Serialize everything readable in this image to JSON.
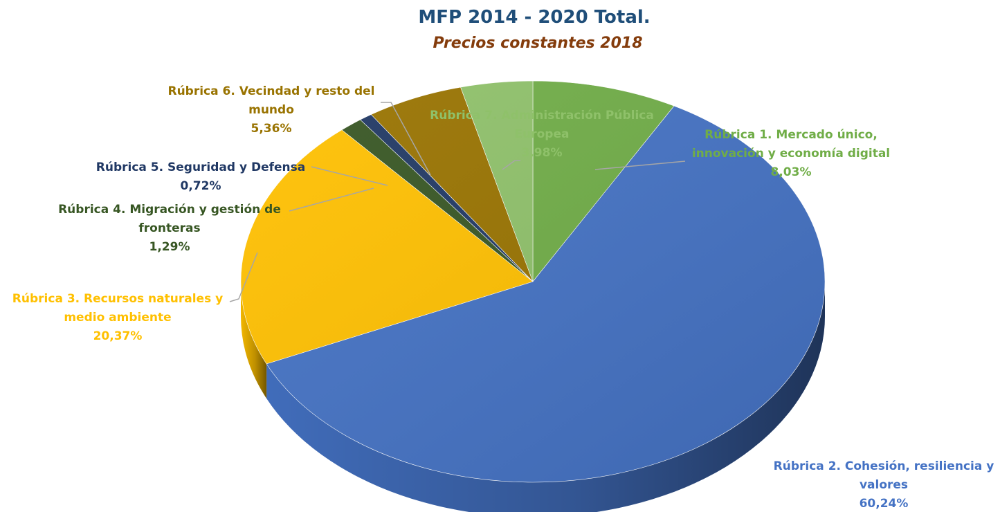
{
  "chart_data": {
    "type": "pie",
    "title": "MFP 2014 - 2020 Total.",
    "subtitle": "Precios constantes 2018",
    "title_color": "#1F4E79",
    "subtitle_color": "#843C0C",
    "three_d": true,
    "slices": [
      {
        "label_lines": [
          "Rúbrica 1. Mercado único,",
          "innovación y economía digital"
        ],
        "pct_text": "8,03%",
        "value": 8.03,
        "color": "#70AD47",
        "label_color": "#70AD47"
      },
      {
        "label_lines": [
          "Rúbrica 2. Cohesión, resiliencia y",
          "valores"
        ],
        "pct_text": "60,24%",
        "value": 60.24,
        "color": "#4472C4",
        "label_color": "#4472C4"
      },
      {
        "label_lines": [
          "Rúbrica 3. Recursos naturales y",
          "medio ambiente"
        ],
        "pct_text": "20,37%",
        "value": 20.37,
        "color": "#FFC000",
        "label_color": "#FFC000"
      },
      {
        "label_lines": [
          "Rúbrica 4. Migración y gestión de",
          "fronteras"
        ],
        "pct_text": "1,29%",
        "value": 1.29,
        "color": "#375623",
        "label_color": "#375623"
      },
      {
        "label_lines": [
          "Rúbrica 5. Seguridad y Defensa"
        ],
        "pct_text": "0,72%",
        "value": 0.72,
        "color": "#203864",
        "label_color": "#203864"
      },
      {
        "label_lines": [
          "Rúbrica 6. Vecindad y resto del",
          "mundo"
        ],
        "pct_text": "5,36%",
        "value": 5.36,
        "color": "#997300",
        "label_color": "#997300"
      },
      {
        "label_lines": [
          "Rúbrica 7. Administración Pública",
          "Europea"
        ],
        "pct_text": "3,98%",
        "value": 3.98,
        "color": "#8FC16A",
        "label_color": "#8FC16A"
      }
    ]
  }
}
